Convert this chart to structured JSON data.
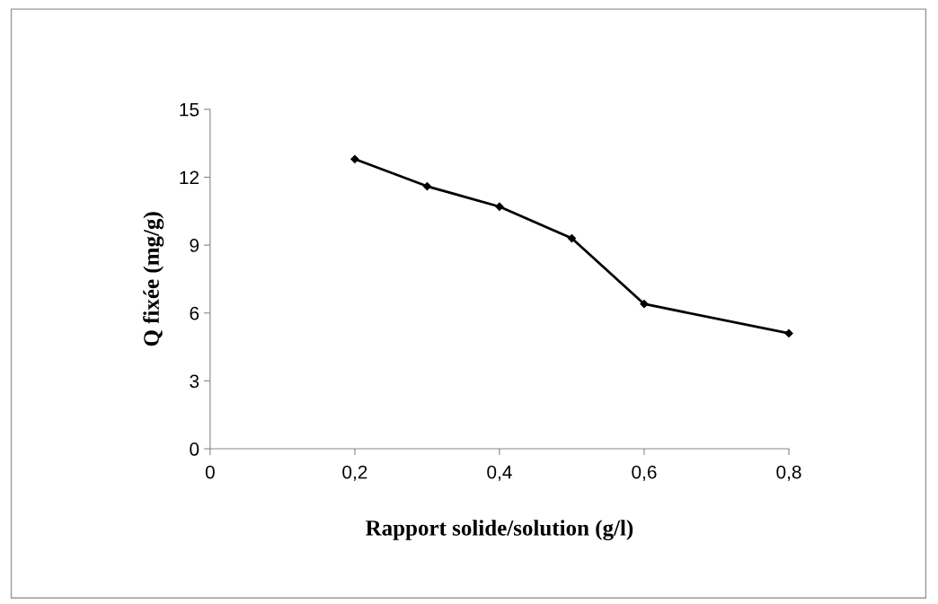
{
  "chart_data": {
    "type": "line",
    "xlabel": "Rapport solide/solution (g/l)",
    "ylabel": "Q fixée (mg/g)",
    "x": [
      0.2,
      0.3,
      0.4,
      0.5,
      0.6,
      0.8
    ],
    "series": [
      {
        "color": "#000000",
        "values": [
          12.8,
          11.6,
          10.7,
          9.3,
          6.4,
          5.1
        ]
      }
    ],
    "xlim": [
      0,
      0.8
    ],
    "xticks": [
      {
        "value": 0,
        "label": "0"
      },
      {
        "value": 0.2,
        "label": "0,2"
      },
      {
        "value": 0.4,
        "label": "0,4"
      },
      {
        "value": 0.6,
        "label": "0,6"
      },
      {
        "value": 0.8,
        "label": "0,8"
      }
    ],
    "ylim": [
      0,
      15
    ],
    "yticks": [
      0,
      3,
      6,
      9,
      12,
      15
    ],
    "marker": "diamond",
    "line_style": "solid",
    "grid": false,
    "legend": false
  }
}
